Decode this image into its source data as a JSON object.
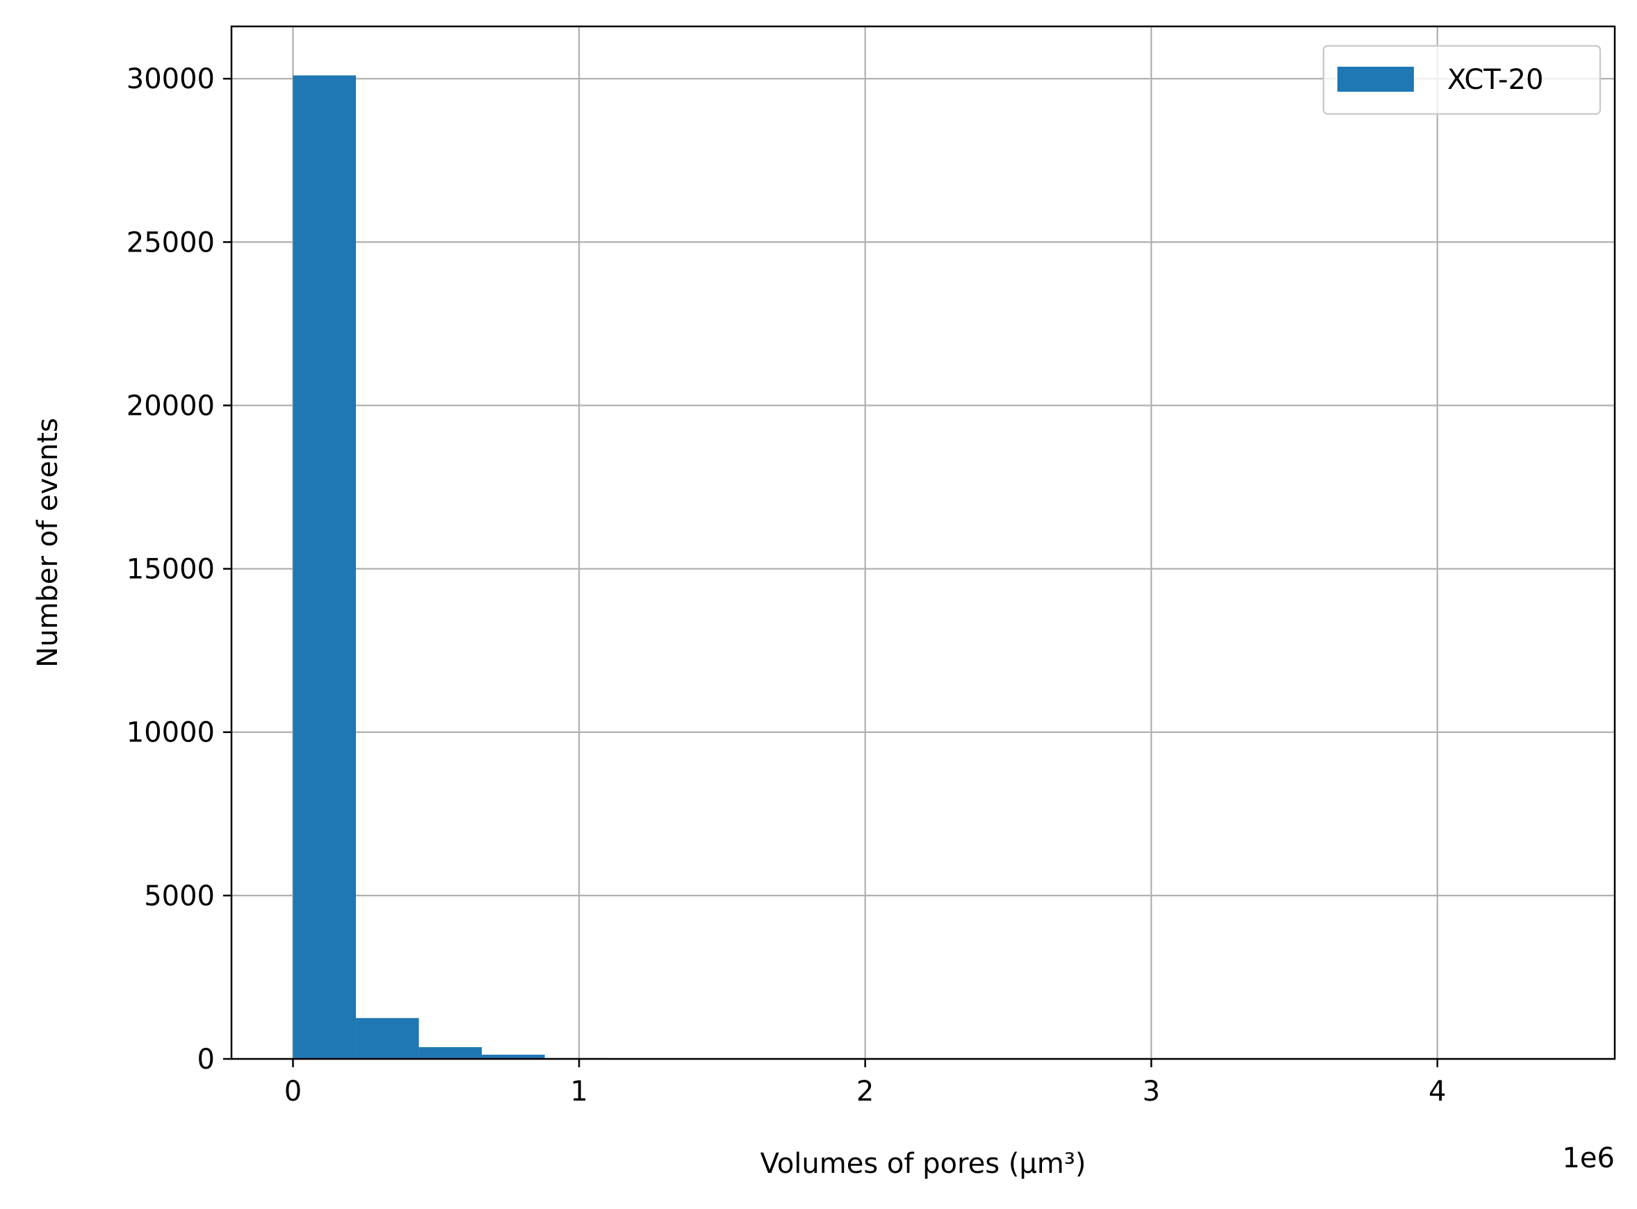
{
  "chart_data": {
    "type": "bar",
    "histogram": true,
    "series": [
      {
        "name": "XCT-20",
        "color": "#1f77b4",
        "bins": [
          {
            "x0": 0,
            "x1": 220000,
            "count": 30100
          },
          {
            "x0": 220000,
            "x1": 440000,
            "count": 1250
          },
          {
            "x0": 440000,
            "x1": 660000,
            "count": 360
          },
          {
            "x0": 660000,
            "x1": 880000,
            "count": 130
          },
          {
            "x0": 880000,
            "x1": 1100000,
            "count": 25
          },
          {
            "x0": 1100000,
            "x1": 1320000,
            "count": 10
          },
          {
            "x0": 1320000,
            "x1": 1540000,
            "count": 5
          }
        ]
      }
    ],
    "xlabel": "Volumes of pores  (μm³)",
    "ylabel": "Number of events",
    "x_offset_label": "1e6",
    "xlim": [
      -215000,
      4620000
    ],
    "ylim": [
      0,
      31600
    ],
    "xticks": [
      0,
      1000000,
      2000000,
      3000000,
      4000000
    ],
    "xtick_labels": [
      "0",
      "1",
      "2",
      "3",
      "4"
    ],
    "yticks": [
      0,
      5000,
      10000,
      15000,
      20000,
      25000,
      30000
    ],
    "ytick_labels": [
      "0",
      "5000",
      "10000",
      "15000",
      "20000",
      "25000",
      "30000"
    ],
    "grid": true,
    "legend_position": "top-right"
  }
}
